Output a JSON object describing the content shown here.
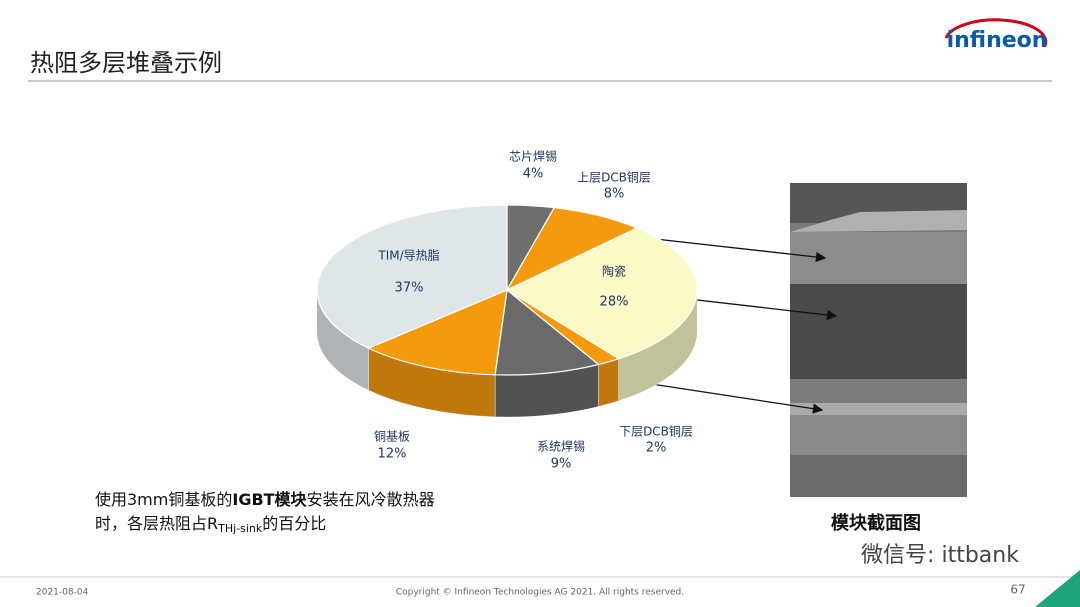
{
  "header": {
    "title": "热阻多层堆叠示例",
    "logo": "infineon"
  },
  "chart_data": {
    "type": "pie",
    "categories": [
      "芯片焊锡",
      "上层DCB铜层",
      "陶瓷",
      "下层DCB铜层",
      "系统焊锡",
      "铜基板",
      "TIM/导热脂"
    ],
    "values": [
      4,
      8,
      28,
      2,
      9,
      12,
      37
    ],
    "value_labels": [
      "4%",
      "8%",
      "28%",
      "2%",
      "9%",
      "12%",
      "37%"
    ],
    "colors": [
      "#6e6e6e",
      "#f59a0c",
      "#fafac6",
      "#f59a0c",
      "#6a6a6a",
      "#f59a0c",
      "#dfe6ea"
    ]
  },
  "caption": [
    "使用3mm铜基板的",
    "IGBT模块",
    "安装在风冷散热器",
    "时，各层热阻占R",
    "THj-sink",
    "的百分比"
  ],
  "image_caption": "模块截面图",
  "footer": {
    "date": "2021-08-04",
    "copyright": "Copyright © Infineon Technologies AG 2021. All rights reserved.",
    "page": "67",
    "watermark": "微信号: ittbank"
  }
}
